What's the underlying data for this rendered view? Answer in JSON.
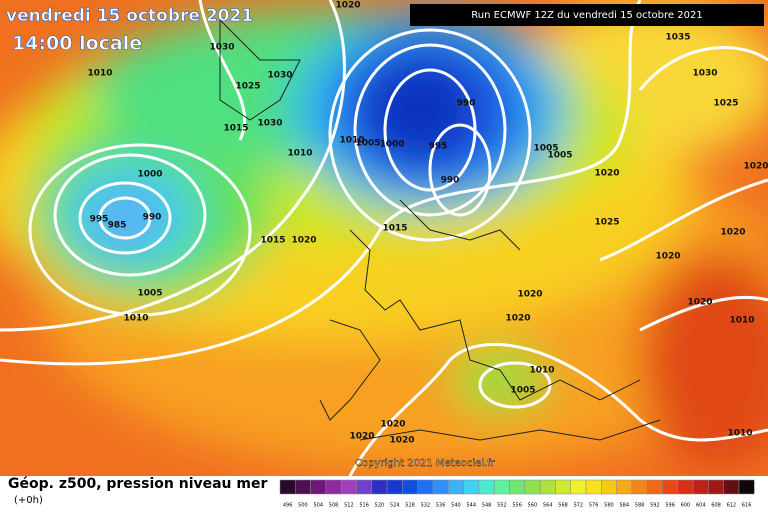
{
  "header": {
    "date": "vendredi 15 octobre 2021",
    "time": "14:00 locale",
    "run": "Run ECMWF 12Z du vendredi 15 octobre 2021"
  },
  "isobar_labels": [
    "1020",
    "1030",
    "1010",
    "1030",
    "1025",
    "1015",
    "1030",
    "1010",
    "1010",
    "1005",
    "1000",
    "995",
    "990",
    "990",
    "1005",
    "1005",
    "1000",
    "995",
    "985",
    "990",
    "1015",
    "1020",
    "1015",
    "1005",
    "1010",
    "1020",
    "1020",
    "1010",
    "1005",
    "1020",
    "1020",
    "1020",
    "1035",
    "1030",
    "1025",
    "1020",
    "1025",
    "1020",
    "1020",
    "1020",
    "1020",
    "1010",
    "1010"
  ],
  "copyright": "Copyright 2021 Meteociel.fr",
  "footer": {
    "title": "Géop. z500, pression niveau mer",
    "step": "(+0h)"
  },
  "scale_labels": [
    "496",
    "500",
    "504",
    "508",
    "512",
    "516",
    "520",
    "524",
    "528",
    "532",
    "536",
    "540",
    "544",
    "548",
    "552",
    "556",
    "560",
    "564",
    "568",
    "572",
    "576",
    "580",
    "584",
    "588",
    "592",
    "596",
    "600",
    "604",
    "608",
    "612",
    "616"
  ]
}
